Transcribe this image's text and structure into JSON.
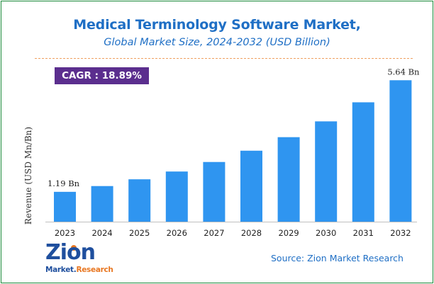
{
  "header": {
    "title": "Medical Terminology Software Market,",
    "subtitle": "Global Market Size, 2024-2032 (USD Billion)"
  },
  "cagr_badge": "CAGR : 18.89%",
  "source": "Source: Zion Market Research",
  "logo": {
    "word": "Zion",
    "tag_a": "Market.",
    "tag_b": "Research"
  },
  "colors": {
    "bar": "#2f95f0",
    "title": "#1f6fc5",
    "badge": "#5b2e8e",
    "border": "#1b8a3a",
    "dash": "#f0a060"
  },
  "chart_data": {
    "type": "bar",
    "categories": [
      "2023",
      "2024",
      "2025",
      "2026",
      "2027",
      "2028",
      "2029",
      "2030",
      "2031",
      "2032"
    ],
    "values": [
      1.19,
      1.42,
      1.69,
      2.0,
      2.38,
      2.83,
      3.37,
      4.0,
      4.76,
      5.64
    ],
    "data_labels": {
      "0": "1.19 Bn",
      "9": "5.64 Bn"
    },
    "title": "Medical Terminology Software Market,",
    "subtitle": "Global Market Size, 2024-2032 (USD Billion)",
    "xlabel": "",
    "ylabel": "Revenue (USD Mn/Bn)",
    "ylim": [
      0,
      6.1
    ],
    "grid": false,
    "legend": "none"
  }
}
